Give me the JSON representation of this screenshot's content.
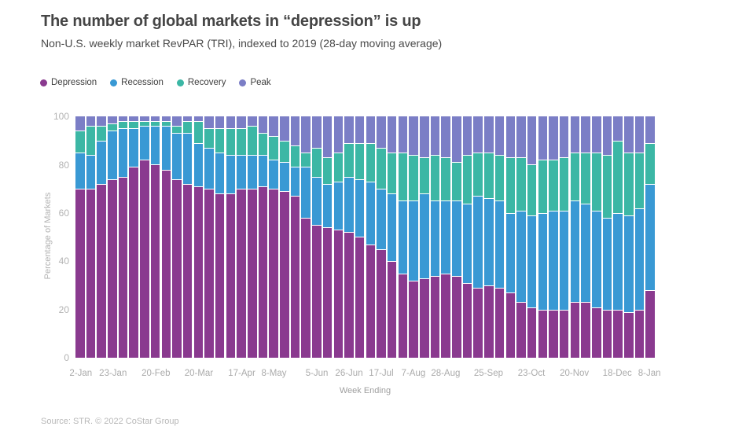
{
  "header": {
    "title": "The number of global markets in “depression” is up",
    "subtitle": "Non-U.S. weekly market RevPAR (TRI), indexed to 2019 (28-day moving average)"
  },
  "footer": {
    "source": "Source: STR. © 2022 CoStar Group"
  },
  "colors": {
    "depression": "#8a3a8f",
    "recession": "#3999d4",
    "recovery": "#3cb7a5",
    "peak": "#7b7ec6",
    "title_text": "#454545",
    "axis_text": "#b3b3b3"
  },
  "chart_data": {
    "type": "bar",
    "stacked": true,
    "title": "The number of global markets in “depression” is up",
    "subtitle": "Non-U.S. weekly market RevPAR (TRI), indexed to 2019 (28-day moving average)",
    "xlabel": "Week Ending",
    "ylabel": "Percentage of Markets",
    "ylim": [
      0,
      100
    ],
    "grid": false,
    "legend_position": "top-left",
    "y_ticks": [
      100,
      80,
      60,
      40,
      20,
      0
    ],
    "categories": [
      "2-Jan",
      "9-Jan",
      "16-Jan",
      "23-Jan",
      "30-Jan",
      "6-Feb",
      "13-Feb",
      "20-Feb",
      "27-Feb",
      "6-Mar",
      "13-Mar",
      "20-Mar",
      "27-Mar",
      "3-Apr",
      "10-Apr",
      "17-Apr",
      "24-Apr",
      "1-May",
      "8-May",
      "15-May",
      "22-May",
      "29-May",
      "5-Jun",
      "12-Jun",
      "19-Jun",
      "26-Jun",
      "3-Jul",
      "10-Jul",
      "17-Jul",
      "24-Jul",
      "31-Jul",
      "7-Aug",
      "14-Aug",
      "21-Aug",
      "28-Aug",
      "4-Sep",
      "11-Sep",
      "18-Sep",
      "25-Sep",
      "2-Oct",
      "9-Oct",
      "16-Oct",
      "23-Oct",
      "30-Oct",
      "6-Nov",
      "13-Nov",
      "20-Nov",
      "27-Nov",
      "4-Dec",
      "11-Dec",
      "18-Dec",
      "25-Dec",
      "1-Jan",
      "8-Jan"
    ],
    "x_ticks": [
      {
        "index": 0,
        "label": "2-Jan"
      },
      {
        "index": 3,
        "label": "23-Jan"
      },
      {
        "index": 7,
        "label": "20-Feb"
      },
      {
        "index": 11,
        "label": "20-Mar"
      },
      {
        "index": 15,
        "label": "17-Apr"
      },
      {
        "index": 18,
        "label": "8-May"
      },
      {
        "index": 22,
        "label": "5-Jun"
      },
      {
        "index": 25,
        "label": "26-Jun"
      },
      {
        "index": 28,
        "label": "17-Jul"
      },
      {
        "index": 31,
        "label": "7-Aug"
      },
      {
        "index": 34,
        "label": "28-Aug"
      },
      {
        "index": 38,
        "label": "25-Sep"
      },
      {
        "index": 42,
        "label": "23-Oct"
      },
      {
        "index": 46,
        "label": "20-Nov"
      },
      {
        "index": 50,
        "label": "18-Dec"
      },
      {
        "index": 53,
        "label": "8-Jan"
      }
    ],
    "series": [
      {
        "name": "Depression",
        "color": "#8a3a8f",
        "values": [
          70,
          70,
          72,
          74,
          75,
          79,
          82,
          80,
          78,
          74,
          72,
          71,
          70,
          68,
          68,
          70,
          70,
          71,
          70,
          69,
          67,
          58,
          55,
          54,
          53,
          52,
          50,
          47,
          45,
          40,
          35,
          32,
          33,
          34,
          35,
          34,
          31,
          29,
          30,
          29,
          27,
          23,
          21,
          20,
          20,
          20,
          23,
          23,
          21,
          20,
          20,
          19,
          20,
          28
        ]
      },
      {
        "name": "Recession",
        "color": "#3999d4",
        "values": [
          15,
          14,
          18,
          20,
          20,
          16,
          14,
          16,
          18,
          19,
          21,
          18,
          17,
          17,
          16,
          14,
          14,
          13,
          12,
          12,
          12,
          21,
          20,
          18,
          20,
          23,
          24,
          26,
          25,
          28,
          30,
          33,
          35,
          31,
          30,
          31,
          33,
          38,
          36,
          36,
          33,
          38,
          38,
          40,
          41,
          41,
          42,
          41,
          40,
          38,
          40,
          40,
          42,
          44
        ]
      },
      {
        "name": "Recovery",
        "color": "#3cb7a5",
        "values": [
          9,
          12,
          6,
          3,
          3,
          3,
          2,
          2,
          2,
          3,
          5,
          9,
          8,
          10,
          11,
          11,
          12,
          9,
          10,
          9,
          9,
          6,
          12,
          11,
          12,
          14,
          15,
          16,
          17,
          17,
          20,
          19,
          15,
          19,
          18,
          16,
          20,
          18,
          19,
          19,
          23,
          22,
          21,
          22,
          21,
          22,
          20,
          21,
          24,
          26,
          30,
          26,
          23,
          17
        ]
      },
      {
        "name": "Peak",
        "color": "#7b7ec6",
        "values": [
          6,
          4,
          4,
          3,
          2,
          2,
          2,
          2,
          2,
          4,
          2,
          2,
          5,
          5,
          5,
          5,
          4,
          7,
          8,
          10,
          12,
          15,
          13,
          17,
          15,
          11,
          11,
          11,
          13,
          15,
          15,
          16,
          17,
          16,
          17,
          19,
          16,
          15,
          15,
          16,
          17,
          17,
          20,
          18,
          18,
          17,
          15,
          15,
          15,
          16,
          10,
          15,
          15,
          11
        ]
      }
    ]
  }
}
